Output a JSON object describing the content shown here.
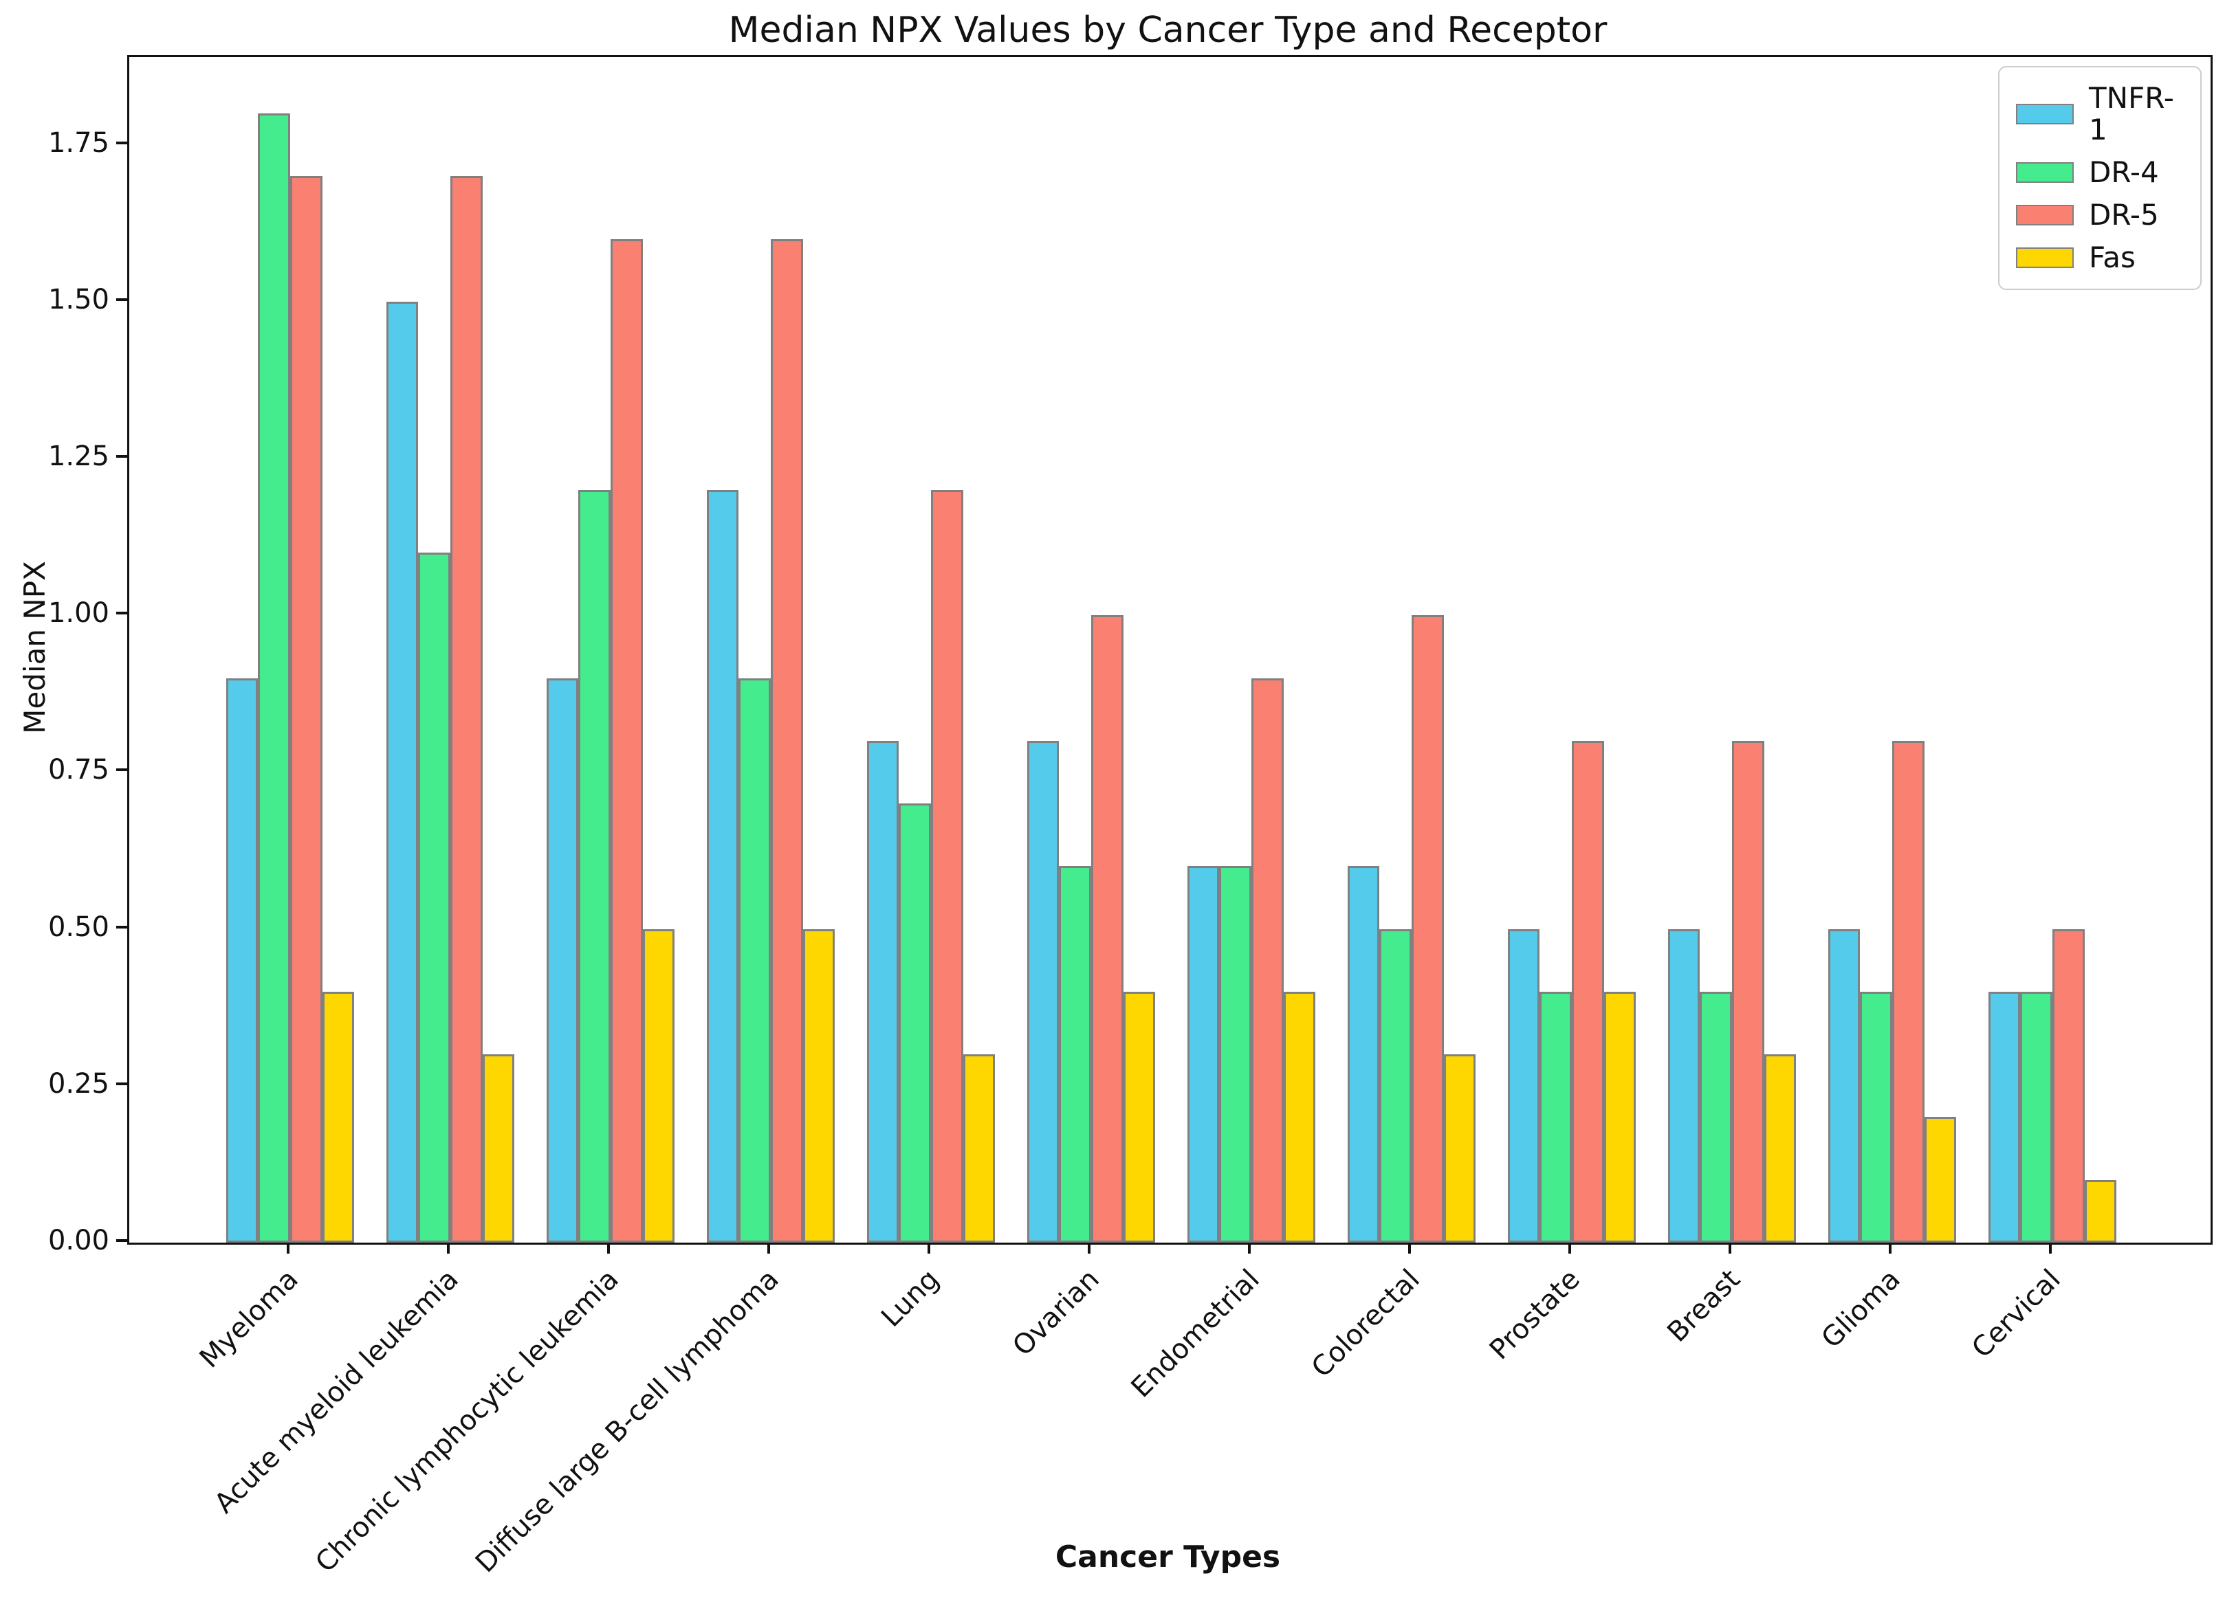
{
  "figure": {
    "title": "Median NPX Values by Cancer Type and Receptor",
    "xlabel": "Cancer Types",
    "ylabel": "Median NPX"
  },
  "chart_data": {
    "type": "bar",
    "title": "Median NPX Values by Cancer Type and Receptor",
    "xlabel": "Cancer Types",
    "ylabel": "Median NPX",
    "categories": [
      "Myeloma",
      "Acute myeloid leukemia",
      "Chronic lymphocytic leukemia",
      "Diffuse large B-cell lymphoma",
      "Lung",
      "Ovarian",
      "Endometrial",
      "Colorectal",
      "Prostate",
      "Breast",
      "Glioma",
      "Cervical"
    ],
    "series": [
      {
        "name": "TNFR-1",
        "color": "#55CBEB",
        "values": [
          0.9,
          1.5,
          0.9,
          1.2,
          0.8,
          0.8,
          0.6,
          0.6,
          0.5,
          0.5,
          0.5,
          0.4
        ]
      },
      {
        "name": "DR-4",
        "color": "#44EC8D",
        "values": [
          1.8,
          1.1,
          1.2,
          0.9,
          0.7,
          0.6,
          0.6,
          0.5,
          0.4,
          0.4,
          0.4,
          0.4
        ]
      },
      {
        "name": "DR-5",
        "color": "#FA8072",
        "values": [
          1.7,
          1.7,
          1.6,
          1.6,
          1.2,
          1.0,
          0.9,
          1.0,
          0.8,
          0.8,
          0.8,
          0.5
        ]
      },
      {
        "name": "Fas",
        "color": "#FFD700",
        "values": [
          0.4,
          0.3,
          0.5,
          0.5,
          0.3,
          0.4,
          0.4,
          0.3,
          0.4,
          0.3,
          0.2,
          0.1
        ]
      }
    ],
    "ytick_labels": [
      "0.00",
      "0.25",
      "0.50",
      "0.75",
      "1.00",
      "1.25",
      "1.50",
      "1.75"
    ],
    "ytick_values": [
      0,
      0.25,
      0.5,
      0.75,
      1.0,
      1.25,
      1.5,
      1.75
    ],
    "ylim": [
      0,
      1.89
    ],
    "grid": false,
    "legend_position": "upper right",
    "bar_edge_color": "#808080"
  }
}
